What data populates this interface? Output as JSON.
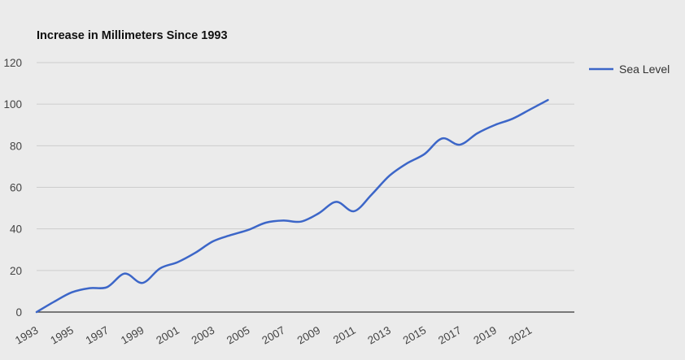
{
  "chart_data": {
    "type": "line",
    "title": "Increase in Millimeters Since 1993",
    "xlabel": "",
    "ylabel": "",
    "x_ticks": [
      "1993",
      "1995",
      "1997",
      "1999",
      "2001",
      "2003",
      "2005",
      "2007",
      "2009",
      "2011",
      "2013",
      "2015",
      "2017",
      "2019",
      "2021"
    ],
    "y_ticks": [
      "0",
      "20",
      "40",
      "60",
      "80",
      "100",
      "120"
    ],
    "ylim": [
      0,
      120
    ],
    "xlim": [
      1993,
      2023.5
    ],
    "grid": true,
    "legend_position": "right",
    "series": [
      {
        "name": "Sea Level",
        "color": "#3c66c8",
        "points": [
          [
            1993,
            0
          ],
          [
            1994,
            5
          ],
          [
            1995,
            9.5
          ],
          [
            1996,
            11.5
          ],
          [
            1997,
            12
          ],
          [
            1998,
            18.5
          ],
          [
            1999,
            14
          ],
          [
            2000,
            21
          ],
          [
            2001,
            24
          ],
          [
            2002,
            28.5
          ],
          [
            2003,
            34
          ],
          [
            2004,
            37
          ],
          [
            2005,
            39.5
          ],
          [
            2006,
            43
          ],
          [
            2007,
            44
          ],
          [
            2008,
            43.5
          ],
          [
            2009,
            47.5
          ],
          [
            2010,
            53
          ],
          [
            2011,
            48.5
          ],
          [
            2012,
            56.5
          ],
          [
            2013,
            65.5
          ],
          [
            2014,
            71.5
          ],
          [
            2015,
            76
          ],
          [
            2016,
            83.5
          ],
          [
            2017,
            80.5
          ],
          [
            2018,
            86
          ],
          [
            2019,
            90
          ],
          [
            2020,
            93
          ],
          [
            2021,
            97.5
          ],
          [
            2022,
            102
          ]
        ]
      }
    ]
  }
}
